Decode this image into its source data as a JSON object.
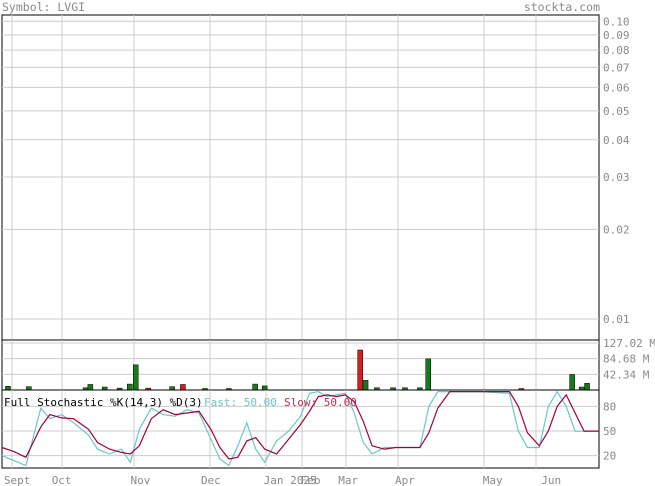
{
  "header": {
    "symbol_label": "Symbol: LVGI",
    "site": "stockta.com"
  },
  "colors": {
    "up": "#1a7a1a",
    "down": "#d42020",
    "fast": "#6cc6c6",
    "slow": "#a0003c",
    "grid": "#cccccc",
    "axis_text": "#8a8a8a"
  },
  "chart_data": [
    {
      "type": "line",
      "title": "",
      "ylabel": "",
      "y_scale": "log",
      "ylim": [
        0.0085,
        0.105
      ],
      "grid": true,
      "y_ticks": [
        {
          "value": 0.1,
          "label": "0.10"
        },
        {
          "value": 0.09,
          "label": "0.09"
        },
        {
          "value": 0.08,
          "label": "0.08"
        },
        {
          "value": 0.07,
          "label": "0.07"
        },
        {
          "value": 0.06,
          "label": "0.06"
        },
        {
          "value": 0.05,
          "label": "0.05"
        },
        {
          "value": 0.04,
          "label": "0.04"
        },
        {
          "value": 0.03,
          "label": "0.03"
        },
        {
          "value": 0.02,
          "label": "0.02"
        },
        {
          "value": 0.01,
          "label": "0.01"
        }
      ],
      "series": []
    },
    {
      "type": "bar",
      "title": "",
      "ylim": [
        0,
        135
      ],
      "y_ticks": [
        {
          "value": 127.02,
          "label": "127.02 M"
        },
        {
          "value": 84.68,
          "label": "84.68 M"
        },
        {
          "value": 42.34,
          "label": "42.34 M"
        }
      ],
      "bars": [
        {
          "x": 0.01,
          "value": 10,
          "dir": "up"
        },
        {
          "x": 0.045,
          "value": 9,
          "dir": "up"
        },
        {
          "x": 0.14,
          "value": 6,
          "dir": "up"
        },
        {
          "x": 0.148,
          "value": 15,
          "dir": "up"
        },
        {
          "x": 0.172,
          "value": 8,
          "dir": "up"
        },
        {
          "x": 0.197,
          "value": 5,
          "dir": "up"
        },
        {
          "x": 0.214,
          "value": 16,
          "dir": "up"
        },
        {
          "x": 0.224,
          "value": 68,
          "dir": "up"
        },
        {
          "x": 0.245,
          "value": 5,
          "dir": "down"
        },
        {
          "x": 0.285,
          "value": 9,
          "dir": "up"
        },
        {
          "x": 0.303,
          "value": 15,
          "dir": "down"
        },
        {
          "x": 0.34,
          "value": 4,
          "dir": "up"
        },
        {
          "x": 0.38,
          "value": 4,
          "dir": "up"
        },
        {
          "x": 0.424,
          "value": 16,
          "dir": "up"
        },
        {
          "x": 0.44,
          "value": 11,
          "dir": "up"
        },
        {
          "x": 0.6,
          "value": 108,
          "dir": "down"
        },
        {
          "x": 0.609,
          "value": 26,
          "dir": "up"
        },
        {
          "x": 0.628,
          "value": 6,
          "dir": "up"
        },
        {
          "x": 0.655,
          "value": 6,
          "dir": "up"
        },
        {
          "x": 0.675,
          "value": 6,
          "dir": "up"
        },
        {
          "x": 0.7,
          "value": 6,
          "dir": "up"
        },
        {
          "x": 0.714,
          "value": 84,
          "dir": "up"
        },
        {
          "x": 0.87,
          "value": 4,
          "dir": "down"
        },
        {
          "x": 0.955,
          "value": 42,
          "dir": "up"
        },
        {
          "x": 0.971,
          "value": 8,
          "dir": "up"
        },
        {
          "x": 0.98,
          "value": 18,
          "dir": "up"
        }
      ]
    },
    {
      "type": "line",
      "title": "Full Stochastic %K(14,3) %D(3)",
      "fast_label": "Fast: 50.00",
      "slow_label": "Slow: 50.00",
      "ylim": [
        5,
        100
      ],
      "y_ticks": [
        {
          "value": 80,
          "label": "80"
        },
        {
          "value": 50,
          "label": "50"
        },
        {
          "value": 20,
          "label": "20"
        }
      ],
      "x_labels": [
        {
          "x": 0.02,
          "label": "Sept"
        },
        {
          "x": 0.1,
          "label": "Oct"
        },
        {
          "x": 0.232,
          "label": "Nov"
        },
        {
          "x": 0.35,
          "label": "Dec"
        },
        {
          "x": 0.455,
          "label": "Jan 2025"
        },
        {
          "x": 0.517,
          "label": "Feb"
        },
        {
          "x": 0.58,
          "label": "Mar"
        },
        {
          "x": 0.675,
          "label": "Apr"
        },
        {
          "x": 0.822,
          "label": "May"
        },
        {
          "x": 0.92,
          "label": "Jun"
        }
      ],
      "series": [
        {
          "name": "Fast",
          "points": [
            [
              0,
              20
            ],
            [
              0.02,
              14
            ],
            [
              0.04,
              8
            ],
            [
              0.065,
              78
            ],
            [
              0.08,
              65
            ],
            [
              0.1,
              70
            ],
            [
              0.12,
              60
            ],
            [
              0.145,
              45
            ],
            [
              0.16,
              28
            ],
            [
              0.18,
              22
            ],
            [
              0.2,
              28
            ],
            [
              0.215,
              12
            ],
            [
              0.23,
              52
            ],
            [
              0.25,
              78
            ],
            [
              0.27,
              70
            ],
            [
              0.29,
              68
            ],
            [
              0.31,
              76
            ],
            [
              0.33,
              72
            ],
            [
              0.35,
              40
            ],
            [
              0.365,
              16
            ],
            [
              0.38,
              8
            ],
            [
              0.395,
              32
            ],
            [
              0.41,
              60
            ],
            [
              0.425,
              28
            ],
            [
              0.44,
              12
            ],
            [
              0.46,
              38
            ],
            [
              0.48,
              50
            ],
            [
              0.5,
              68
            ],
            [
              0.515,
              96
            ],
            [
              0.53,
              98
            ],
            [
              0.545,
              92
            ],
            [
              0.56,
              94
            ],
            [
              0.575,
              96
            ],
            [
              0.59,
              72
            ],
            [
              0.605,
              36
            ],
            [
              0.62,
              22
            ],
            [
              0.64,
              30
            ],
            [
              0.66,
              30
            ],
            [
              0.68,
              30
            ],
            [
              0.7,
              30
            ],
            [
              0.715,
              80
            ],
            [
              0.73,
              98
            ],
            [
              0.8,
              98
            ],
            [
              0.85,
              96
            ],
            [
              0.865,
              50
            ],
            [
              0.88,
              30
            ],
            [
              0.9,
              30
            ],
            [
              0.915,
              80
            ],
            [
              0.93,
              98
            ],
            [
              0.945,
              80
            ],
            [
              0.96,
              50
            ],
            [
              0.975,
              50
            ],
            [
              1.0,
              50
            ]
          ]
        },
        {
          "name": "Slow",
          "points": [
            [
              0,
              30
            ],
            [
              0.02,
              25
            ],
            [
              0.04,
              18
            ],
            [
              0.065,
              55
            ],
            [
              0.08,
              70
            ],
            [
              0.1,
              66
            ],
            [
              0.12,
              65
            ],
            [
              0.145,
              52
            ],
            [
              0.16,
              36
            ],
            [
              0.18,
              28
            ],
            [
              0.2,
              24
            ],
            [
              0.215,
              22
            ],
            [
              0.23,
              32
            ],
            [
              0.25,
              65
            ],
            [
              0.27,
              76
            ],
            [
              0.29,
              70
            ],
            [
              0.31,
              72
            ],
            [
              0.33,
              74
            ],
            [
              0.35,
              52
            ],
            [
              0.365,
              30
            ],
            [
              0.38,
              16
            ],
            [
              0.395,
              18
            ],
            [
              0.41,
              38
            ],
            [
              0.425,
              42
            ],
            [
              0.44,
              28
            ],
            [
              0.46,
              22
            ],
            [
              0.48,
              40
            ],
            [
              0.5,
              58
            ],
            [
              0.515,
              74
            ],
            [
              0.53,
              92
            ],
            [
              0.545,
              94
            ],
            [
              0.56,
              92
            ],
            [
              0.575,
              94
            ],
            [
              0.59,
              86
            ],
            [
              0.605,
              62
            ],
            [
              0.62,
              32
            ],
            [
              0.64,
              28
            ],
            [
              0.66,
              30
            ],
            [
              0.68,
              30
            ],
            [
              0.7,
              30
            ],
            [
              0.715,
              48
            ],
            [
              0.73,
              78
            ],
            [
              0.75,
              98
            ],
            [
              0.8,
              98
            ],
            [
              0.85,
              98
            ],
            [
              0.865,
              80
            ],
            [
              0.88,
              48
            ],
            [
              0.9,
              32
            ],
            [
              0.915,
              50
            ],
            [
              0.93,
              80
            ],
            [
              0.945,
              94
            ],
            [
              0.96,
              72
            ],
            [
              0.975,
              50
            ],
            [
              1.0,
              50
            ]
          ]
        }
      ]
    }
  ]
}
